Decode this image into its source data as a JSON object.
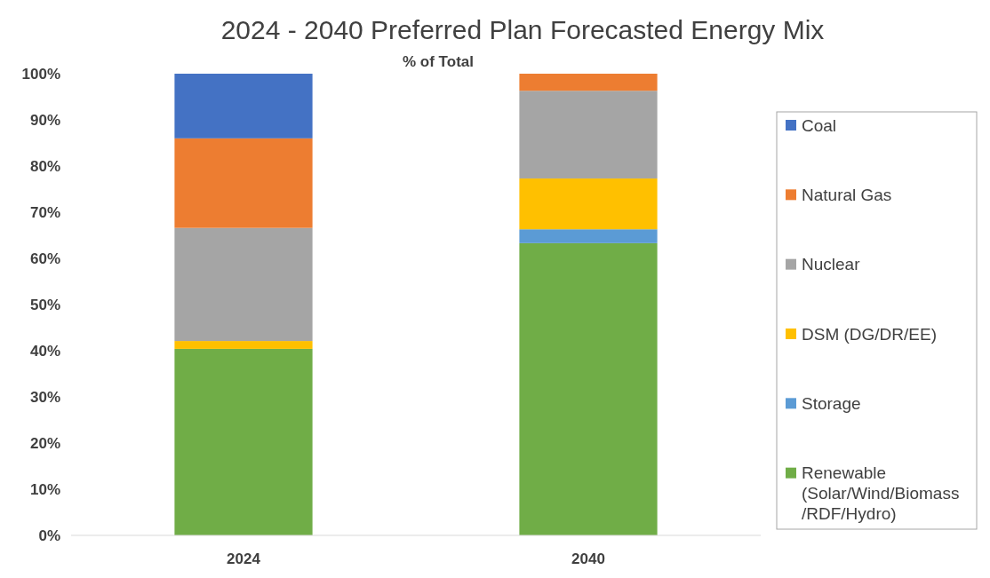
{
  "chart_data": {
    "type": "bar",
    "title": "2024 - 2040 Preferred Plan Forecasted Energy Mix",
    "subtitle": "% of Total",
    "categories": [
      "2024",
      "2040"
    ],
    "stacked": true,
    "series": [
      {
        "name": "Renewable (Solar/Wind/Biomass /RDF/Hydro)",
        "color": "#70ad47",
        "values": [
          40.4,
          63.3
        ]
      },
      {
        "name": "Storage",
        "color": "#5b9bd5",
        "values": [
          0,
          3.0
        ]
      },
      {
        "name": "DSM (DG/DR/EE)",
        "color": "#ffc000",
        "values": [
          1.7,
          11.0
        ]
      },
      {
        "name": "Nuclear",
        "color": "#a5a5a5",
        "values": [
          24.5,
          19.0
        ]
      },
      {
        "name": "Natural Gas",
        "color": "#ed7d31",
        "values": [
          19.4,
          3.7
        ]
      },
      {
        "name": "Coal",
        "color": "#4472c4",
        "values": [
          14.0,
          0
        ]
      }
    ],
    "ylim": [
      0,
      100
    ],
    "yticks": [
      {
        "value": 0,
        "label": "0%"
      },
      {
        "value": 10,
        "label": "10%"
      },
      {
        "value": 20,
        "label": "20%"
      },
      {
        "value": 30,
        "label": "30%"
      },
      {
        "value": 40,
        "label": "40%"
      },
      {
        "value": 50,
        "label": "50%"
      },
      {
        "value": 60,
        "label": "60%"
      },
      {
        "value": 70,
        "label": "70%"
      },
      {
        "value": 80,
        "label": "80%"
      },
      {
        "value": 90,
        "label": "90%"
      },
      {
        "value": 100,
        "label": "100%"
      }
    ],
    "grid": false,
    "legend": "right"
  }
}
